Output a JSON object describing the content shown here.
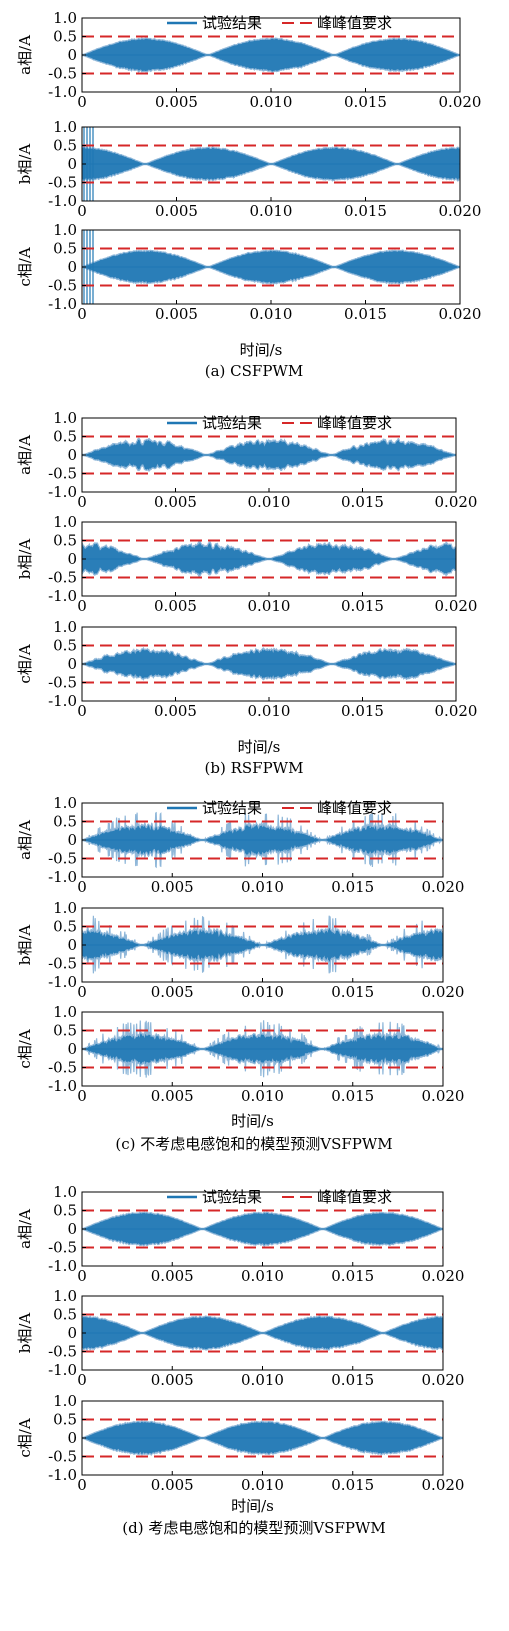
{
  "colors": {
    "signal": "#1f77b4",
    "signal_light": "#8fb7d9",
    "limit": "#d62728",
    "axis": "#000000"
  },
  "chart_data": [
    {
      "id": "a",
      "type": "line",
      "caption": "(a) CSFPWM",
      "xlabel": "时间/s",
      "legend": {
        "placement": "top",
        "entries": [
          "试验结果",
          "峰峰值要求"
        ]
      },
      "x_ticks": [
        "0",
        "0.005",
        "0.010",
        "0.015",
        "0.020"
      ],
      "xlim": [
        0,
        0.02
      ],
      "pattern": "uniform",
      "subplots": [
        {
          "ylabel": "a相/A",
          "ylim": [
            -1,
            1
          ],
          "y_ticks": [
            "1.0",
            "0.5",
            "0",
            "-0.5",
            "-1.0"
          ],
          "limits": [
            0.5,
            -0.5
          ],
          "phase": 0,
          "envelope_peak": 0.45
        },
        {
          "ylabel": "b相/A",
          "ylim": [
            -1,
            1
          ],
          "y_ticks": [
            "1.0",
            "0.5",
            "0",
            "-0.5",
            "-1.0"
          ],
          "limits": [
            0.5,
            -0.5
          ],
          "phase": 0.00333,
          "envelope_peak": 0.45
        },
        {
          "ylabel": "c相/A",
          "ylim": [
            -1,
            1
          ],
          "y_ticks": [
            "1.0",
            "0.5",
            "0",
            "-0.5",
            "-1.0"
          ],
          "limits": [
            0.5,
            -0.5
          ],
          "phase": 0.00667,
          "envelope_peak": 0.45
        }
      ]
    },
    {
      "id": "b",
      "type": "line",
      "caption": "(b) RSFPWM",
      "xlabel": "时间/s",
      "legend": {
        "placement": "top",
        "entries": [
          "试验结果",
          "峰峰值要求"
        ]
      },
      "x_ticks": [
        "0",
        "0.005",
        "0.010",
        "0.015",
        "0.020"
      ],
      "xlim": [
        0,
        0.02
      ],
      "pattern": "random",
      "subplots": [
        {
          "ylabel": "a相/A",
          "ylim": [
            -1,
            1
          ],
          "y_ticks": [
            "1.0",
            "0.5",
            "0",
            "-0.5",
            "-1.0"
          ],
          "limits": [
            0.5,
            -0.5
          ],
          "phase": 0,
          "envelope_peak": 0.38
        },
        {
          "ylabel": "b相/A",
          "ylim": [
            -1,
            1
          ],
          "y_ticks": [
            "1.0",
            "0.5",
            "0",
            "-0.5",
            "-1.0"
          ],
          "limits": [
            0.5,
            -0.5
          ],
          "phase": 0.00333,
          "envelope_peak": 0.38
        },
        {
          "ylabel": "c相/A",
          "ylim": [
            -1,
            1
          ],
          "y_ticks": [
            "1.0",
            "0.5",
            "0",
            "-0.5",
            "-1.0"
          ],
          "limits": [
            0.5,
            -0.5
          ],
          "phase": 0.00667,
          "envelope_peak": 0.38
        }
      ]
    },
    {
      "id": "c",
      "type": "line",
      "caption": "(c) 不考虑电感饱和的模型预测VSFPWM",
      "xlabel": "时间/s",
      "legend": {
        "placement": "top",
        "entries": [
          "试验结果",
          "峰峰值要求"
        ]
      },
      "x_ticks": [
        "0",
        "0.005",
        "0.010",
        "0.015",
        "0.020"
      ],
      "xlim": [
        0,
        0.02
      ],
      "pattern": "spiky",
      "subplots": [
        {
          "ylabel": "a相/A",
          "ylim": [
            -1,
            1
          ],
          "y_ticks": [
            "1.0",
            "0.5",
            "0",
            "-0.5",
            "-1.0"
          ],
          "limits": [
            0.5,
            -0.5
          ],
          "phase": 0,
          "envelope_peak": 0.45
        },
        {
          "ylabel": "b相/A",
          "ylim": [
            -1,
            1
          ],
          "y_ticks": [
            "1.0",
            "0.5",
            "0",
            "-0.5",
            "-1.0"
          ],
          "limits": [
            0.5,
            -0.5
          ],
          "phase": 0.00333,
          "envelope_peak": 0.45
        },
        {
          "ylabel": "c相/A",
          "ylim": [
            -1,
            1
          ],
          "y_ticks": [
            "1.0",
            "0.5",
            "0",
            "-0.5",
            "-1.0"
          ],
          "limits": [
            0.5,
            -0.5
          ],
          "phase": 0.00667,
          "envelope_peak": 0.45
        }
      ]
    },
    {
      "id": "d",
      "type": "line",
      "caption": "(d) 考虑电感饱和的模型预测VSFPWM",
      "xlabel": "时间/s",
      "legend": {
        "placement": "top",
        "entries": [
          "试验结果",
          "峰峰值要求"
        ]
      },
      "x_ticks": [
        "0",
        "0.005",
        "0.010",
        "0.015",
        "0.020"
      ],
      "xlim": [
        0,
        0.02
      ],
      "pattern": "uniform",
      "subplots": [
        {
          "ylabel": "a相/A",
          "ylim": [
            -1,
            1
          ],
          "y_ticks": [
            "1.0",
            "0.5",
            "0",
            "-0.5",
            "-1.0"
          ],
          "limits": [
            0.5,
            -0.5
          ],
          "phase": 0,
          "envelope_peak": 0.45
        },
        {
          "ylabel": "b相/A",
          "ylim": [
            -1,
            1
          ],
          "y_ticks": [
            "1.0",
            "0.5",
            "0",
            "-0.5",
            "-1.0"
          ],
          "limits": [
            0.5,
            -0.5
          ],
          "phase": 0.00333,
          "envelope_peak": 0.45
        },
        {
          "ylabel": "c相/A",
          "ylim": [
            -1,
            1
          ],
          "y_ticks": [
            "1.0",
            "0.5",
            "0",
            "-0.5",
            "-1.0"
          ],
          "limits": [
            0.5,
            -0.5
          ],
          "phase": 0.00667,
          "envelope_peak": 0.45
        }
      ]
    }
  ]
}
